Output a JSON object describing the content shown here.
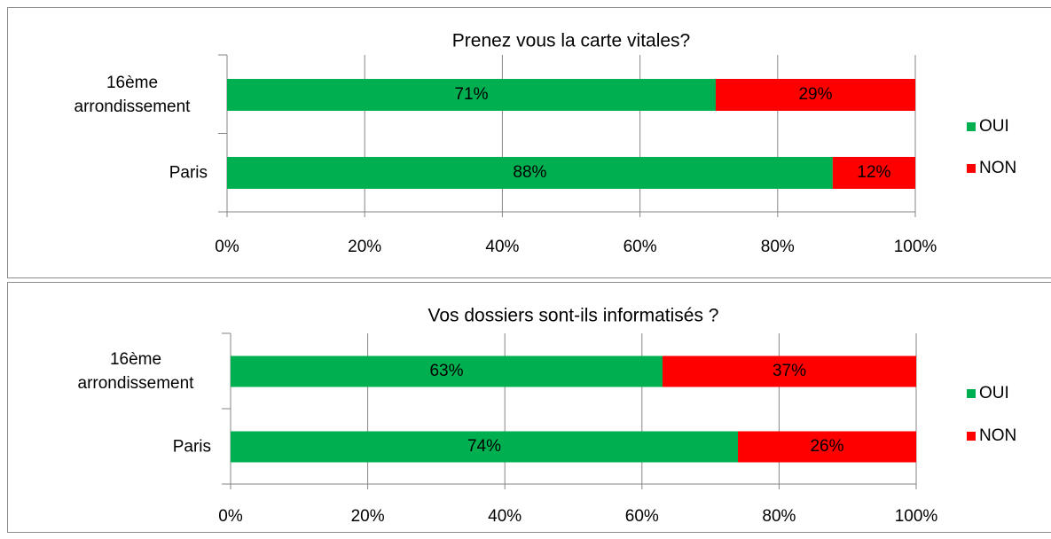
{
  "chart_data": [
    {
      "type": "stacked-bar-horizontal",
      "title": "Prenez vous la carte vitales?",
      "categories": [
        "16ème arrondissement",
        "Paris"
      ],
      "series": [
        {
          "name": "OUI",
          "color": "#00b050",
          "values": [
            71,
            88
          ],
          "value_labels": [
            "71%",
            "88%"
          ]
        },
        {
          "name": "NON",
          "color": "#ff0000",
          "values": [
            29,
            12
          ],
          "value_labels": [
            "29%",
            "12%"
          ]
        }
      ],
      "xlim": [
        0,
        100
      ],
      "xticks": [
        {
          "value": 0,
          "label": "0%"
        },
        {
          "value": 20,
          "label": "20%"
        },
        {
          "value": 40,
          "label": "40%"
        },
        {
          "value": 60,
          "label": "60%"
        },
        {
          "value": 80,
          "label": "80%"
        },
        {
          "value": 100,
          "label": "100%"
        }
      ],
      "grid": true,
      "legend": "right"
    },
    {
      "type": "stacked-bar-horizontal",
      "title": "Vos dossiers sont-ils informatisés ?",
      "categories": [
        "16ème arrondissement",
        "Paris"
      ],
      "series": [
        {
          "name": "OUI",
          "color": "#00b050",
          "values": [
            63,
            74
          ],
          "value_labels": [
            "63%",
            "74%"
          ]
        },
        {
          "name": "NON",
          "color": "#ff0000",
          "values": [
            37,
            26
          ],
          "value_labels": [
            "37%",
            "26%"
          ]
        }
      ],
      "xlim": [
        0,
        100
      ],
      "xticks": [
        {
          "value": 0,
          "label": "0%"
        },
        {
          "value": 20,
          "label": "20%"
        },
        {
          "value": 40,
          "label": "40%"
        },
        {
          "value": 60,
          "label": "60%"
        },
        {
          "value": 80,
          "label": "80%"
        },
        {
          "value": 100,
          "label": "100%"
        }
      ],
      "grid": true,
      "legend": "right"
    }
  ]
}
